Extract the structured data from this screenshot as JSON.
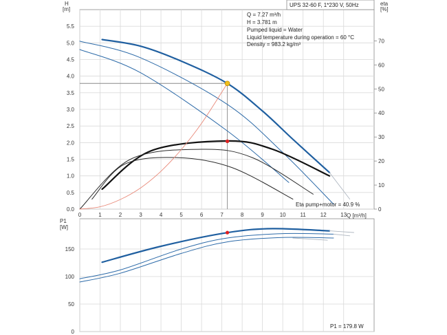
{
  "chart_data": [
    {
      "id": "hq_eta",
      "type": "line",
      "title": "UPS 32-60 F, 1*230 V, 50Hz",
      "xlabel": "Q [m³/h]",
      "ylabel_left": "H\n[m]",
      "ylabel_right": "eta\n[%]",
      "xlim": [
        0,
        14.5
      ],
      "ylim_left": [
        0,
        6.0
      ],
      "ylim_right": [
        0,
        83
      ],
      "x_ticks": [
        0,
        1,
        2,
        3,
        4,
        5,
        6,
        7,
        8,
        9,
        10,
        11,
        12,
        13
      ],
      "y_ticks_left": [
        0.0,
        0.5,
        1.0,
        1.5,
        2.0,
        2.5,
        3.0,
        3.5,
        4.0,
        4.5,
        5.0,
        5.5
      ],
      "y_ticks_right": [
        0,
        10,
        20,
        30,
        40,
        50,
        60,
        70
      ],
      "info_lines": [
        "Q = 7.27 m³/h",
        "H = 3.781 m",
        "Pumped liquid = Water",
        "Liquid temperature during operation = 60 °C",
        "Density = 983.2 kg/m³"
      ],
      "eta_annotation": "Eta pump+motor = 40.9 %",
      "series": [
        {
          "name": "H speed 3",
          "axis": "left",
          "color": "#1f5fa0",
          "width": 2.2,
          "x": [
            1.1,
            3,
            5,
            7.27,
            9,
            10.5,
            12.3
          ],
          "y": [
            5.1,
            4.9,
            4.45,
            3.78,
            2.95,
            2.1,
            1.1
          ]
        },
        {
          "name": "H speed 2 (thin)",
          "axis": "left",
          "color": "#2c6aa8",
          "width": 1.0,
          "x": [
            0,
            3,
            7.27,
            10,
            12.5
          ],
          "y": [
            5.05,
            4.55,
            3.15,
            1.7,
            0.15
          ]
        },
        {
          "name": "H speed 1 (thin)",
          "axis": "left",
          "color": "#2c6aa8",
          "width": 1.0,
          "x": [
            0,
            3,
            7.27,
            10.3
          ],
          "y": [
            4.8,
            4.1,
            2.35,
            0.8
          ]
        },
        {
          "name": "H extension (grey)",
          "axis": "left",
          "color": "#aeb6c0",
          "width": 0.9,
          "x": [
            12.3,
            13.3
          ],
          "y": [
            1.1,
            0.3
          ]
        },
        {
          "name": "Eta pump+motor",
          "axis": "left",
          "color": "#111111",
          "width": 2.2,
          "x": [
            1.1,
            3.5,
            7.27,
            9.5,
            12.3
          ],
          "y": [
            0.6,
            1.75,
            2.05,
            1.8,
            1.0
          ]
        },
        {
          "name": "Eta curve 2",
          "axis": "left",
          "color": "#2a2a2a",
          "width": 1.0,
          "x": [
            0,
            2.5,
            6,
            8.5,
            11.5
          ],
          "y": [
            0,
            1.5,
            1.8,
            1.55,
            0.45
          ]
        },
        {
          "name": "Eta curve 3",
          "axis": "left",
          "color": "#2a2a2a",
          "width": 1.0,
          "x": [
            0.6,
            2.2,
            4.8,
            7.5,
            10.5
          ],
          "y": [
            0.3,
            1.35,
            1.55,
            1.25,
            0.3
          ]
        },
        {
          "name": "System curve",
          "axis": "left",
          "color": "#e98a7a",
          "width": 0.9,
          "x": [
            0,
            1,
            2,
            3,
            4,
            5,
            6,
            7.27
          ],
          "y": [
            0,
            0.07,
            0.29,
            0.64,
            1.14,
            1.79,
            2.58,
            3.78
          ]
        }
      ],
      "duty_point": {
        "x": 7.27,
        "y": 3.781,
        "color": "#f0c020"
      },
      "eta_point": {
        "x": 7.27,
        "y": 2.04,
        "color": "#e02020"
      },
      "guide_lines": {
        "x": 7.27,
        "y": 3.781
      }
    },
    {
      "id": "p1",
      "type": "line",
      "ylabel_left": "P1\n[W]",
      "xlim": [
        0,
        14.5
      ],
      "ylim": [
        0,
        205
      ],
      "y_ticks": [
        0,
        50,
        100,
        150
      ],
      "annotation": "P1 = 179.8 W",
      "series": [
        {
          "name": "P1 speed 3",
          "color": "#1f5fa0",
          "width": 2.2,
          "x": [
            1.1,
            4,
            7.27,
            9.5,
            12.3
          ],
          "y": [
            126,
            155,
            179.8,
            187,
            183
          ]
        },
        {
          "name": "P1 speed 3 ext (grey)",
          "color": "#aeb6c0",
          "width": 0.9,
          "x": [
            12.3,
            13.5
          ],
          "y": [
            183,
            180
          ]
        },
        {
          "name": "P1 curve 2",
          "color": "#2c6aa8",
          "width": 1.0,
          "x": [
            0,
            2,
            5,
            7.27,
            10,
            12.5
          ],
          "y": [
            96,
            112,
            150,
            170,
            178,
            177
          ]
        },
        {
          "name": "P1 curve 3",
          "color": "#2c6aa8",
          "width": 1.0,
          "x": [
            0,
            2,
            5,
            7.27,
            10,
            12.5
          ],
          "y": [
            90,
            106,
            142,
            163,
            171,
            170
          ]
        },
        {
          "name": "P1 ext 2 (grey)",
          "color": "#aeb6c0",
          "width": 0.9,
          "x": [
            12.5,
            13.3
          ],
          "y": [
            177,
            174
          ]
        },
        {
          "name": "P1 ext 3 (grey)",
          "color": "#aeb6c0",
          "width": 0.9,
          "x": [
            10.5,
            12.2
          ],
          "y": [
            170,
            166
          ]
        }
      ],
      "point": {
        "x": 7.27,
        "y": 179.8,
        "color": "#e02020"
      }
    }
  ]
}
